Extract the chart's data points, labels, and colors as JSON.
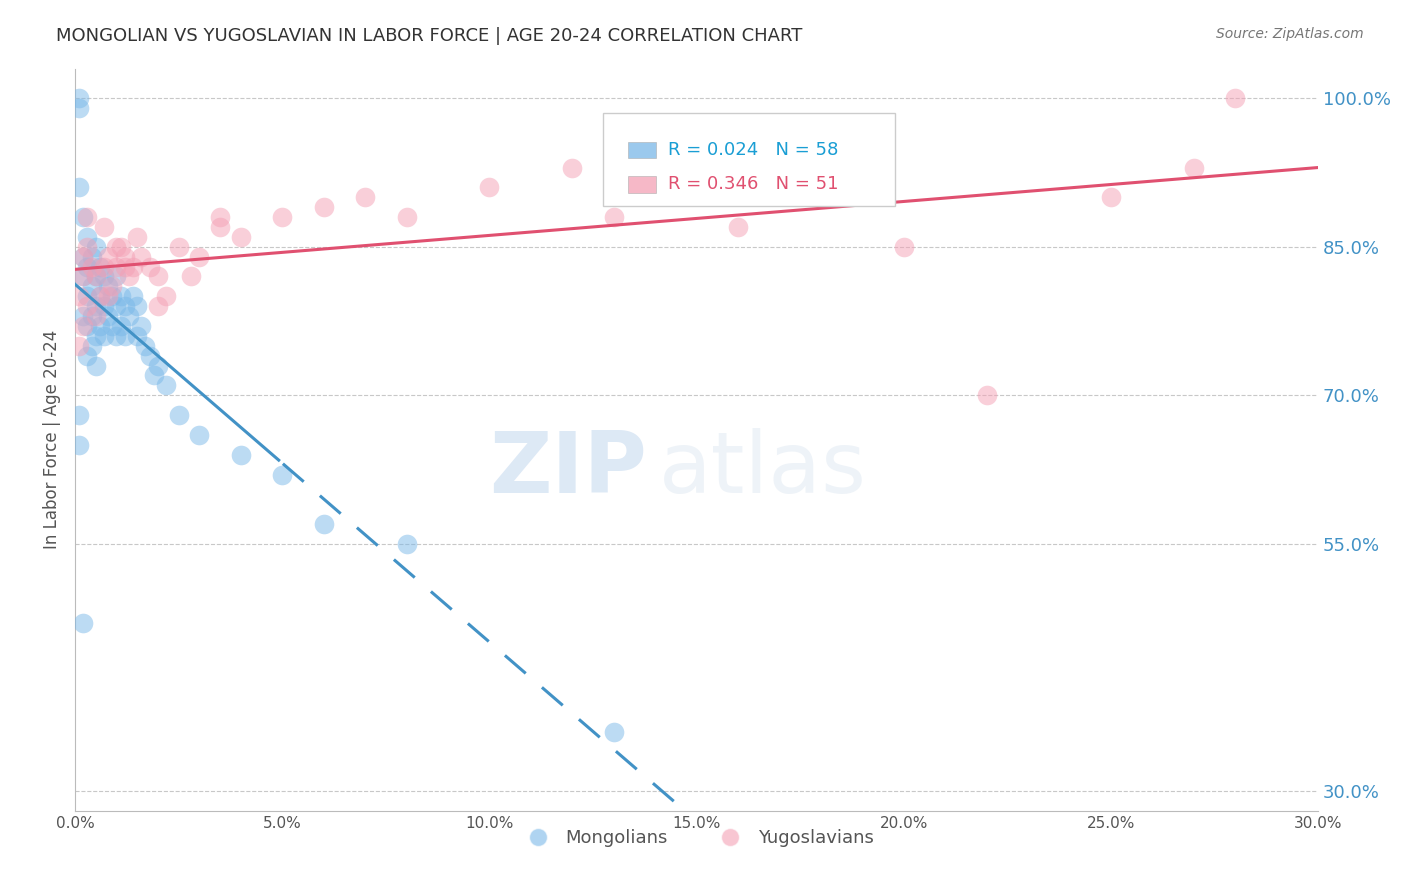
{
  "title": "MONGOLIAN VS YUGOSLAVIAN IN LABOR FORCE | AGE 20-24 CORRELATION CHART",
  "source": "Source: ZipAtlas.com",
  "ylabel": "In Labor Force | Age 20-24",
  "blue_color": "#7ab8e8",
  "pink_color": "#f4a0b5",
  "blue_line_color": "#4292c6",
  "pink_line_color": "#e05070",
  "right_axis_color": "#4292c6",
  "title_color": "#333333",
  "legend_R_blue": "#1a9ed4",
  "legend_R_pink": "#e05070",
  "xlim": [
    0.0,
    0.3
  ],
  "ylim": [
    0.28,
    1.03
  ],
  "yticks_right": [
    0.3,
    0.55,
    0.7,
    0.85,
    1.0
  ],
  "xticks": [
    0.0,
    0.05,
    0.1,
    0.15,
    0.2,
    0.25,
    0.3
  ],
  "mongolian_x": [
    0.001,
    0.001,
    0.001,
    0.002,
    0.002,
    0.002,
    0.002,
    0.003,
    0.003,
    0.003,
    0.003,
    0.003,
    0.004,
    0.004,
    0.004,
    0.004,
    0.005,
    0.005,
    0.005,
    0.005,
    0.005,
    0.006,
    0.006,
    0.006,
    0.007,
    0.007,
    0.007,
    0.008,
    0.008,
    0.009,
    0.009,
    0.01,
    0.01,
    0.01,
    0.011,
    0.011,
    0.012,
    0.012,
    0.013,
    0.014,
    0.015,
    0.015,
    0.016,
    0.017,
    0.018,
    0.019,
    0.02,
    0.022,
    0.025,
    0.03,
    0.04,
    0.05,
    0.06,
    0.08,
    0.13,
    0.001,
    0.001,
    0.002
  ],
  "mongolian_y": [
    1.0,
    0.99,
    0.91,
    0.88,
    0.84,
    0.82,
    0.78,
    0.86,
    0.83,
    0.8,
    0.77,
    0.74,
    0.84,
    0.81,
    0.78,
    0.75,
    0.85,
    0.82,
    0.79,
    0.76,
    0.73,
    0.83,
    0.8,
    0.77,
    0.82,
    0.79,
    0.76,
    0.81,
    0.78,
    0.8,
    0.77,
    0.82,
    0.79,
    0.76,
    0.8,
    0.77,
    0.79,
    0.76,
    0.78,
    0.8,
    0.79,
    0.76,
    0.77,
    0.75,
    0.74,
    0.72,
    0.73,
    0.71,
    0.68,
    0.66,
    0.64,
    0.62,
    0.57,
    0.55,
    0.36,
    0.68,
    0.65,
    0.47
  ],
  "yugoslavian_x": [
    0.001,
    0.002,
    0.002,
    0.003,
    0.003,
    0.004,
    0.005,
    0.005,
    0.006,
    0.007,
    0.008,
    0.008,
    0.009,
    0.01,
    0.011,
    0.012,
    0.013,
    0.014,
    0.015,
    0.016,
    0.018,
    0.02,
    0.022,
    0.025,
    0.03,
    0.035,
    0.04,
    0.05,
    0.06,
    0.07,
    0.08,
    0.1,
    0.12,
    0.13,
    0.15,
    0.16,
    0.18,
    0.2,
    0.22,
    0.25,
    0.27,
    0.28,
    0.001,
    0.002,
    0.003,
    0.007,
    0.01,
    0.012,
    0.02,
    0.028,
    0.035
  ],
  "yugoslavian_y": [
    0.8,
    0.82,
    0.77,
    0.85,
    0.79,
    0.83,
    0.82,
    0.78,
    0.8,
    0.83,
    0.84,
    0.8,
    0.81,
    0.83,
    0.85,
    0.84,
    0.82,
    0.83,
    0.86,
    0.84,
    0.83,
    0.82,
    0.8,
    0.85,
    0.84,
    0.87,
    0.86,
    0.88,
    0.89,
    0.9,
    0.88,
    0.91,
    0.93,
    0.88,
    0.92,
    0.87,
    0.91,
    0.85,
    0.7,
    0.9,
    0.93,
    1.0,
    0.75,
    0.84,
    0.88,
    0.87,
    0.85,
    0.83,
    0.79,
    0.82,
    0.88
  ],
  "watermark_zip": "ZIP",
  "watermark_atlas": "atlas",
  "background_color": "#ffffff",
  "grid_color": "#c8c8c8"
}
